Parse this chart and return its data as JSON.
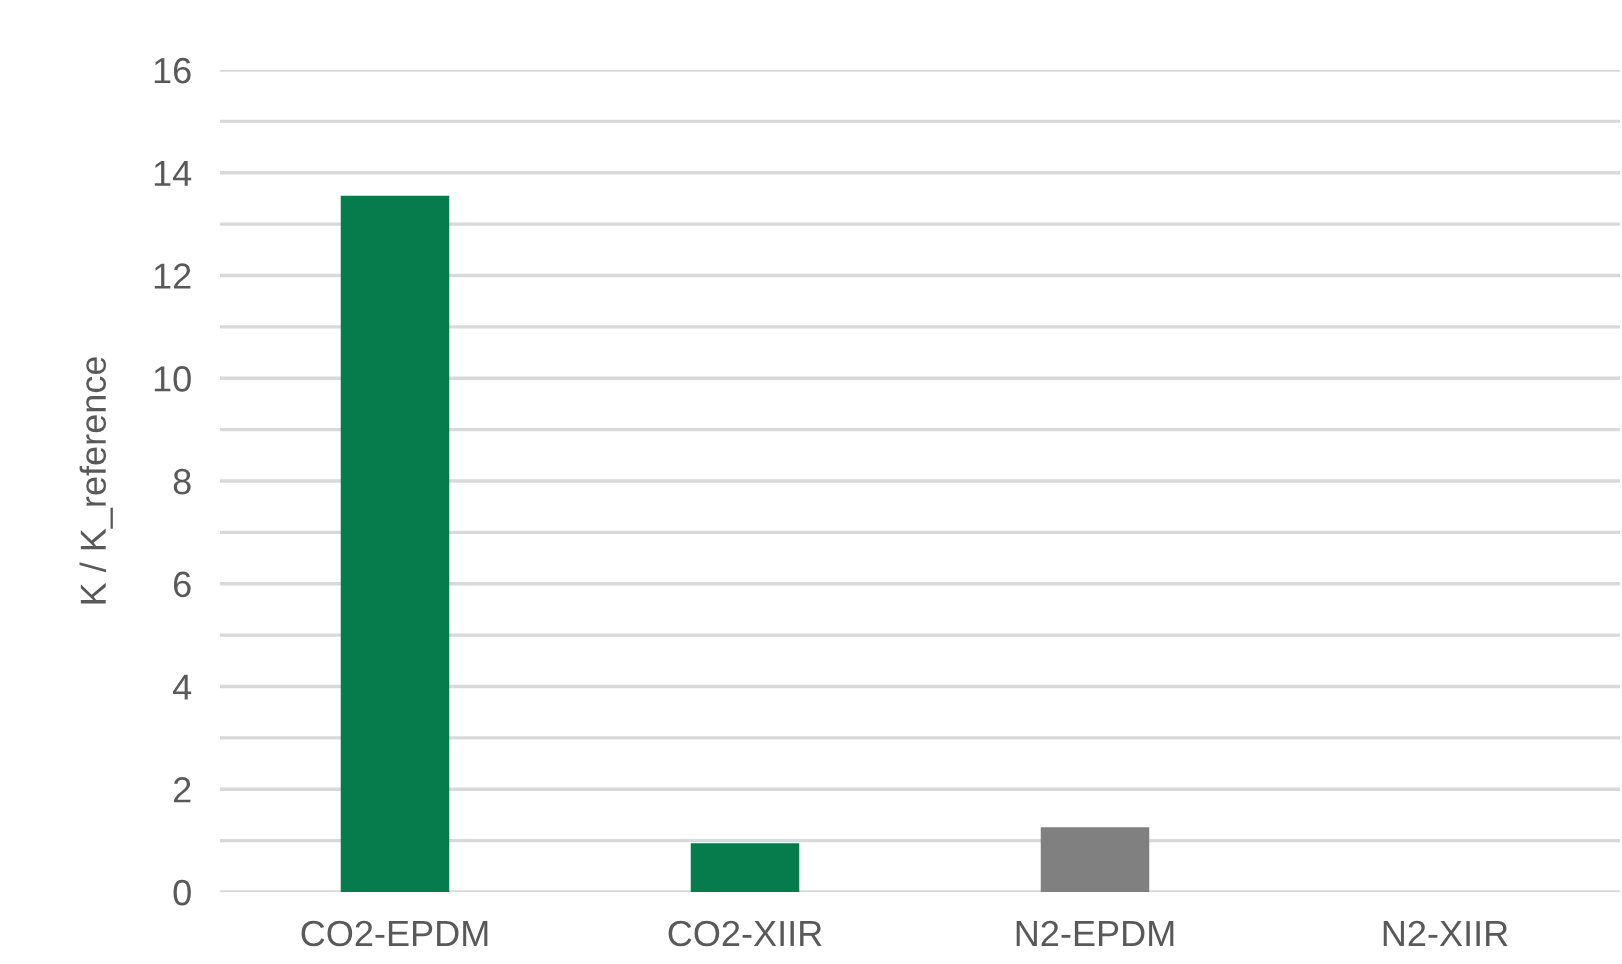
{
  "chart_data": {
    "type": "bar",
    "ylabel": "K / K_reference",
    "categories": [
      "CO2-EPDM",
      "CO2-XIIR",
      "N2-EPDM",
      "N2-XIIR"
    ],
    "values": [
      13.55,
      0.95,
      1.26,
      0
    ],
    "colors": [
      "#067c4c",
      "#067c4c",
      "#808080",
      "#808080"
    ],
    "ylim": [
      0,
      16
    ],
    "yticks": [
      0,
      {
        "value": 1,
        "label": null
      },
      2,
      {
        "value": 3,
        "label": null
      },
      4,
      {
        "value": 5,
        "label": null
      },
      6,
      {
        "value": 7,
        "label": null
      },
      8,
      {
        "value": 9,
        "label": null
      },
      10,
      {
        "value": 11,
        "label": null
      },
      12,
      {
        "value": 13,
        "label": null
      },
      14,
      {
        "value": 15,
        "label": null
      },
      16
    ],
    "grid": "y"
  }
}
